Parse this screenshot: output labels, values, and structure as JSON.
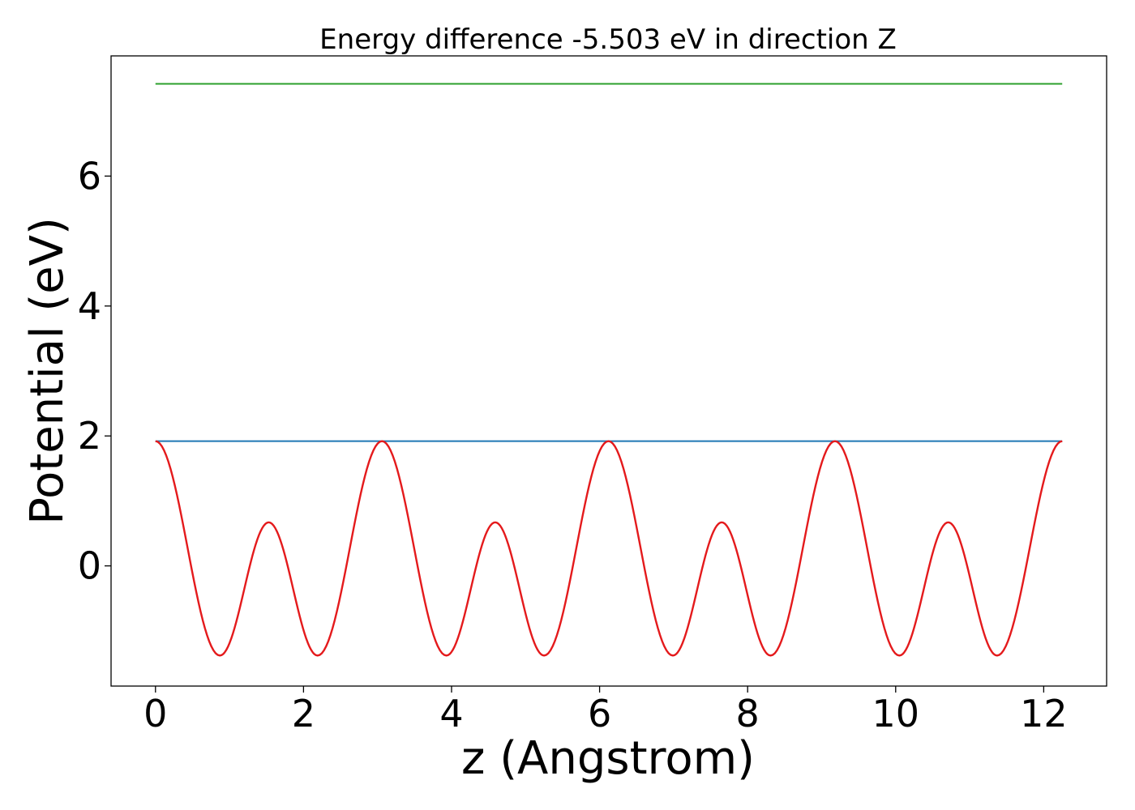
{
  "chart_data": {
    "type": "line",
    "title": "Energy difference -5.503 eV in direction Z",
    "xlabel": "z (Angstrom)",
    "ylabel": "Potential (eV)",
    "xlim": [
      -0.6,
      12.85
    ],
    "ylim": [
      -1.85,
      7.85
    ],
    "xticks": [
      0,
      2,
      4,
      6,
      8,
      10,
      12
    ],
    "yticks": [
      0,
      2,
      4,
      6
    ],
    "grid": false,
    "legend": "none",
    "series": [
      {
        "style": "flat",
        "color": "#2ca02c",
        "x": [
          0,
          12.25
        ],
        "y": [
          7.42,
          7.42
        ]
      },
      {
        "style": "flat",
        "color": "#1f77b4",
        "x": [
          0,
          12.25
        ],
        "y": [
          1.92,
          1.92
        ]
      },
      {
        "style": "periodic",
        "color": "#e41a1c",
        "x": [
          0,
          0.87,
          1.53,
          2.19,
          3.06,
          3.93,
          4.59,
          5.25,
          6.12,
          6.99,
          7.65,
          8.31,
          9.18,
          10.05,
          10.71,
          11.37,
          12.25
        ],
        "y": [
          1.92,
          -1.38,
          0.67,
          -1.38,
          1.92,
          -1.38,
          0.67,
          -1.38,
          1.92,
          -1.38,
          0.67,
          -1.38,
          1.92,
          -1.38,
          0.67,
          -1.38,
          1.92
        ]
      }
    ]
  }
}
